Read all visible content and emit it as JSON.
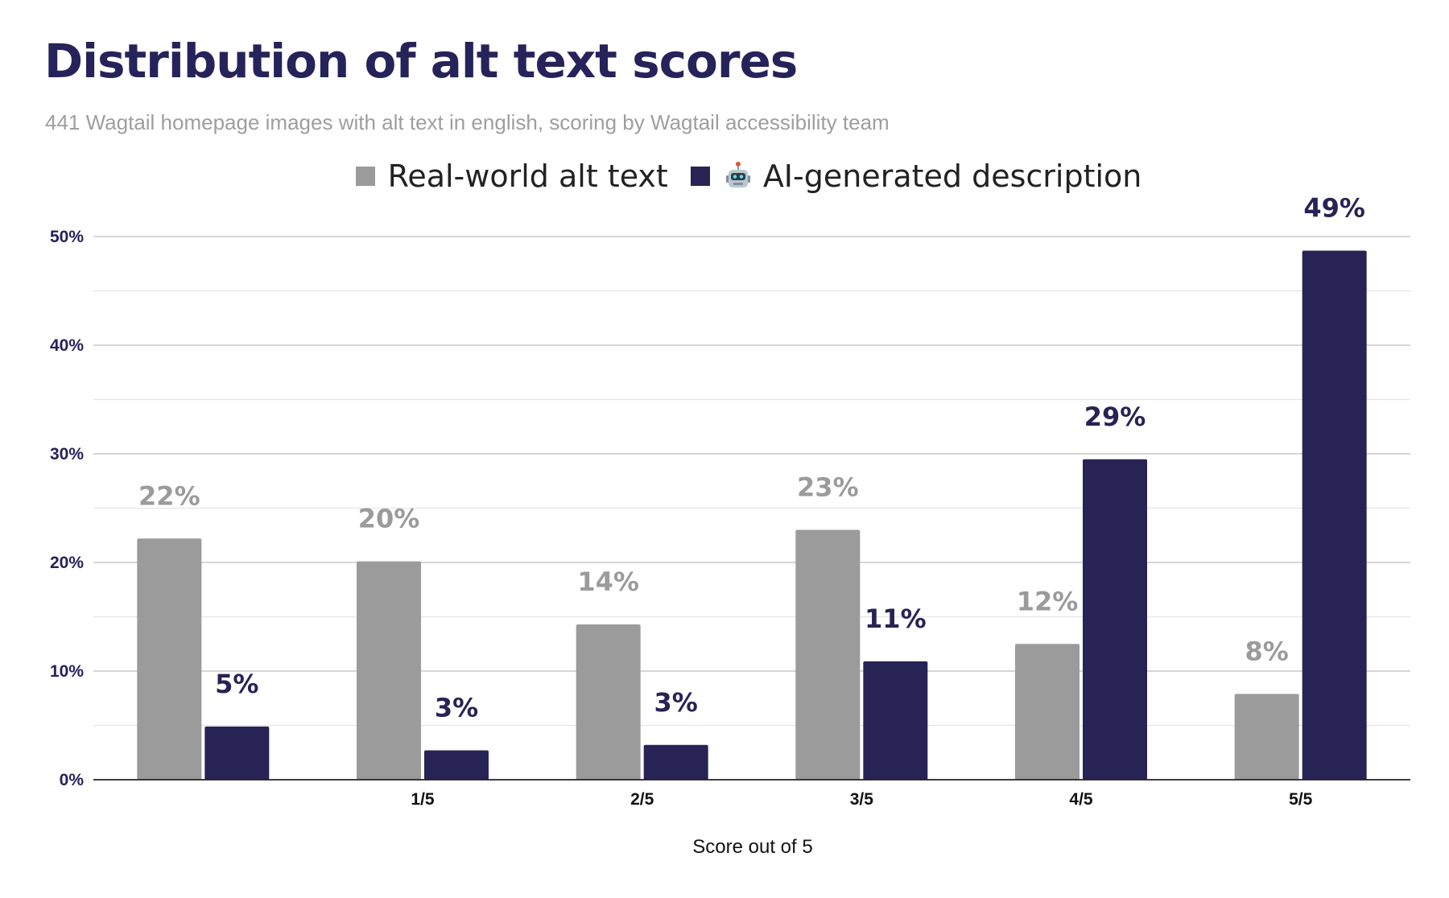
{
  "chart_data": {
    "type": "bar",
    "title": "Distribution of alt text scores",
    "subtitle": "441 Wagtail homepage images with alt text in english, scoring by Wagtail accessibility team",
    "xlabel": "Score out of 5",
    "ylabel": "",
    "categories": [
      "",
      "1/5",
      "2/5",
      "3/5",
      "4/5",
      "5/5"
    ],
    "ylim": [
      0,
      50
    ],
    "yticks": [
      "0%",
      "10%",
      "20%",
      "30%",
      "40%",
      "50%"
    ],
    "grid": true,
    "legend_position": "top-center",
    "series": [
      {
        "name": "Real-world alt text",
        "color": "#9b9b9b",
        "values": [
          22.2,
          20.1,
          14.3,
          23.0,
          12.5,
          7.9
        ],
        "labels": [
          "22%",
          "20%",
          "14%",
          "23%",
          "12%",
          "8%"
        ]
      },
      {
        "name": "AI-generated description",
        "icon": "robot-icon",
        "color": "#282355",
        "values": [
          4.9,
          2.7,
          3.2,
          10.9,
          29.5,
          48.7
        ],
        "labels": [
          "5%",
          "3%",
          "3%",
          "11%",
          "29%",
          "49%"
        ]
      }
    ]
  }
}
